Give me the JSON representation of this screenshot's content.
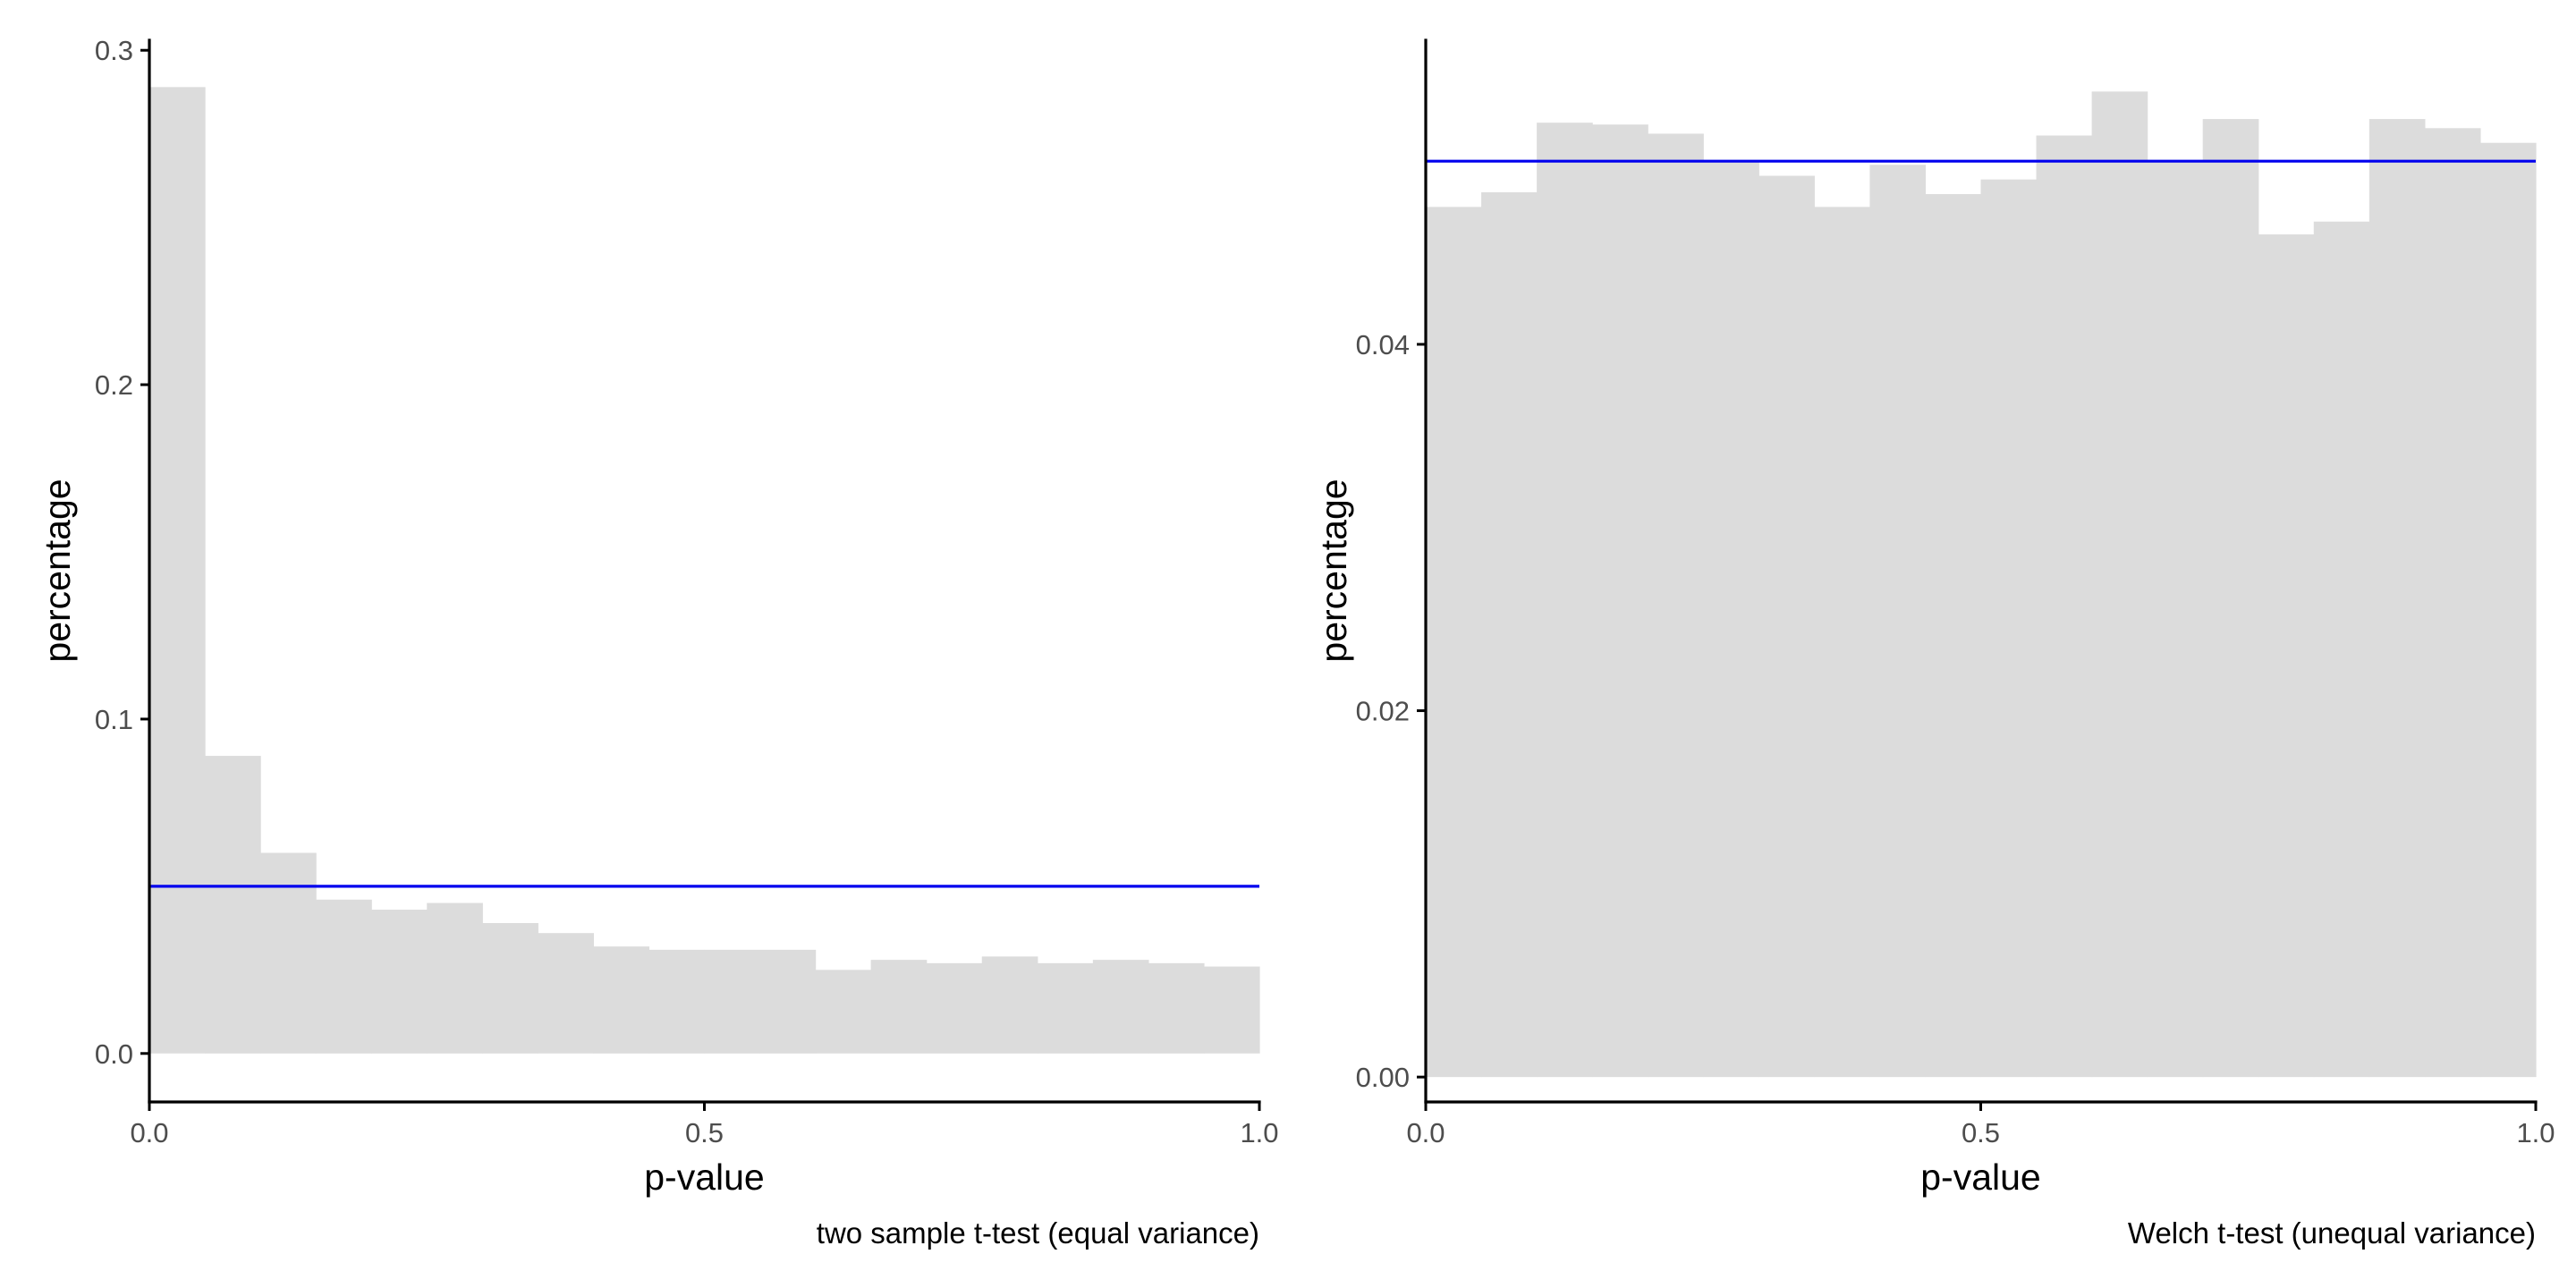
{
  "colors": {
    "bar_fill": "#dcdcdc",
    "reference_line": "#0000ee",
    "axis_line": "#000000",
    "tick_label": "#4d4d4d",
    "text": "#000000",
    "background": "#ffffff"
  },
  "chart_data": [
    {
      "type": "bar",
      "subtype": "histogram",
      "bin_width": 0.05,
      "bin_starts": [
        0.0,
        0.05,
        0.1,
        0.15,
        0.2,
        0.25,
        0.3,
        0.35,
        0.4,
        0.45,
        0.5,
        0.55,
        0.6,
        0.65,
        0.7,
        0.75,
        0.8,
        0.85,
        0.9,
        0.95
      ],
      "values": [
        0.289,
        0.089,
        0.06,
        0.046,
        0.043,
        0.045,
        0.039,
        0.036,
        0.032,
        0.031,
        0.031,
        0.031,
        0.025,
        0.028,
        0.027,
        0.029,
        0.027,
        0.028,
        0.027,
        0.026
      ],
      "reference_line_y": 0.05,
      "xlabel": "p-value",
      "ylabel": "percentage",
      "caption": "two sample t-test (equal variance)",
      "xlim": [
        0.0,
        1.0
      ],
      "ylim": [
        -0.0145,
        0.303
      ],
      "xticks": [
        0.0,
        0.5,
        1.0
      ],
      "xtick_labels": [
        "0.0",
        "0.5",
        "1.0"
      ],
      "yticks": [
        0.0,
        0.1,
        0.2,
        0.3
      ],
      "ytick_labels": [
        "0.0",
        "0.1",
        "0.2",
        "0.3"
      ],
      "grid": false,
      "legend": "none"
    },
    {
      "type": "bar",
      "subtype": "histogram",
      "bin_width": 0.05,
      "bin_starts": [
        0.0,
        0.05,
        0.1,
        0.15,
        0.2,
        0.25,
        0.3,
        0.35,
        0.4,
        0.45,
        0.5,
        0.55,
        0.6,
        0.65,
        0.7,
        0.75,
        0.8,
        0.85,
        0.9,
        0.95
      ],
      "values": [
        0.0475,
        0.0483,
        0.0521,
        0.052,
        0.0515,
        0.05,
        0.0492,
        0.0475,
        0.0498,
        0.0482,
        0.049,
        0.0514,
        0.0538,
        0.05,
        0.0523,
        0.046,
        0.0467,
        0.0523,
        0.0518,
        0.051
      ],
      "reference_line_y": 0.05,
      "xlabel": "p-value",
      "ylabel": "percentage",
      "caption": "Welch t-test (unequal variance)",
      "xlim": [
        0.0,
        1.0
      ],
      "ylim": [
        -0.00136,
        0.0566
      ],
      "xticks": [
        0.0,
        0.5,
        1.0
      ],
      "xtick_labels": [
        "0.0",
        "0.5",
        "1.0"
      ],
      "yticks": [
        0.0,
        0.02,
        0.04
      ],
      "ytick_labels": [
        "0.00",
        "0.02",
        "0.04"
      ],
      "grid": false,
      "legend": "none"
    }
  ]
}
